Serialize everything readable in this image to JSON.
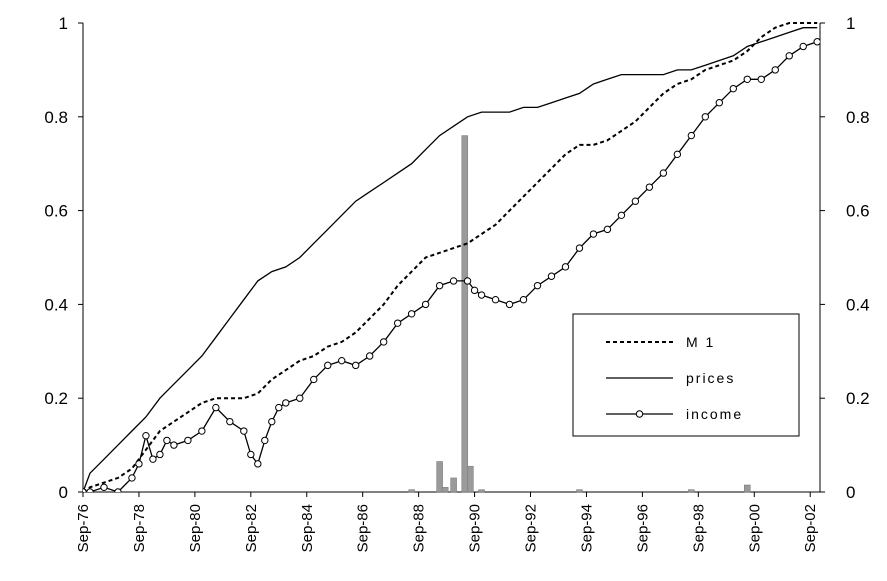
{
  "chart_data": {
    "type": "line",
    "y_ticks_left": [
      "0",
      "0.2",
      "0.4",
      "0.6",
      "0.8",
      "1"
    ],
    "y_ticks_right": [
      "0",
      "0.2",
      "0.4",
      "0.6",
      "0.8",
      "1"
    ],
    "ylim": [
      0,
      1
    ],
    "x_tick_labels": [
      "Sep-76",
      "Sep-78",
      "Sep-80",
      "Sep-82",
      "Sep-84",
      "Sep-86",
      "Sep-88",
      "Sep-90",
      "Sep-92",
      "Sep-94",
      "Sep-96",
      "Sep-98",
      "Sep-00",
      "Sep-02"
    ],
    "x_tick_years": [
      1976.75,
      1978.75,
      1980.75,
      1982.75,
      1984.75,
      1986.75,
      1988.75,
      1990.75,
      1992.75,
      1994.75,
      1996.75,
      1998.75,
      2000.75,
      2002.75
    ],
    "xlim": [
      1976.75,
      2003.1
    ],
    "legend_position": "right-middle",
    "series": [
      {
        "name": "M 1",
        "style": "dashed",
        "color": "#000000",
        "points": [
          [
            1976.75,
            0.0
          ],
          [
            1977.0,
            0.01
          ],
          [
            1977.5,
            0.02
          ],
          [
            1978.0,
            0.03
          ],
          [
            1978.5,
            0.05
          ],
          [
            1979.0,
            0.09
          ],
          [
            1979.5,
            0.13
          ],
          [
            1980.0,
            0.15
          ],
          [
            1980.5,
            0.17
          ],
          [
            1981.0,
            0.19
          ],
          [
            1981.5,
            0.2
          ],
          [
            1982.0,
            0.2
          ],
          [
            1982.5,
            0.2
          ],
          [
            1983.0,
            0.21
          ],
          [
            1983.5,
            0.24
          ],
          [
            1984.0,
            0.26
          ],
          [
            1984.5,
            0.28
          ],
          [
            1985.0,
            0.29
          ],
          [
            1985.5,
            0.31
          ],
          [
            1986.0,
            0.32
          ],
          [
            1986.5,
            0.34
          ],
          [
            1987.0,
            0.37
          ],
          [
            1987.5,
            0.4
          ],
          [
            1988.0,
            0.44
          ],
          [
            1988.5,
            0.47
          ],
          [
            1989.0,
            0.5
          ],
          [
            1989.5,
            0.51
          ],
          [
            1990.0,
            0.52
          ],
          [
            1990.5,
            0.53
          ],
          [
            1991.0,
            0.55
          ],
          [
            1991.5,
            0.57
          ],
          [
            1992.0,
            0.6
          ],
          [
            1992.5,
            0.63
          ],
          [
            1993.0,
            0.66
          ],
          [
            1993.5,
            0.69
          ],
          [
            1994.0,
            0.72
          ],
          [
            1994.5,
            0.74
          ],
          [
            1995.0,
            0.74
          ],
          [
            1995.5,
            0.75
          ],
          [
            1996.0,
            0.77
          ],
          [
            1996.5,
            0.79
          ],
          [
            1997.0,
            0.82
          ],
          [
            1997.5,
            0.85
          ],
          [
            1998.0,
            0.87
          ],
          [
            1998.5,
            0.88
          ],
          [
            1999.0,
            0.9
          ],
          [
            1999.5,
            0.91
          ],
          [
            2000.0,
            0.92
          ],
          [
            2000.5,
            0.94
          ],
          [
            2001.0,
            0.97
          ],
          [
            2001.5,
            0.99
          ],
          [
            2002.0,
            1.0
          ],
          [
            2002.5,
            1.0
          ],
          [
            2003.0,
            1.0
          ]
        ]
      },
      {
        "name": "prices",
        "style": "solid",
        "color": "#000000",
        "points": [
          [
            1976.75,
            0.0
          ],
          [
            1977.0,
            0.04
          ],
          [
            1977.5,
            0.07
          ],
          [
            1978.0,
            0.1
          ],
          [
            1978.5,
            0.13
          ],
          [
            1979.0,
            0.16
          ],
          [
            1979.5,
            0.2
          ],
          [
            1980.0,
            0.23
          ],
          [
            1980.5,
            0.26
          ],
          [
            1981.0,
            0.29
          ],
          [
            1981.5,
            0.33
          ],
          [
            1982.0,
            0.37
          ],
          [
            1982.5,
            0.41
          ],
          [
            1983.0,
            0.45
          ],
          [
            1983.5,
            0.47
          ],
          [
            1984.0,
            0.48
          ],
          [
            1984.5,
            0.5
          ],
          [
            1985.0,
            0.53
          ],
          [
            1985.5,
            0.56
          ],
          [
            1986.0,
            0.59
          ],
          [
            1986.5,
            0.62
          ],
          [
            1987.0,
            0.64
          ],
          [
            1987.5,
            0.66
          ],
          [
            1988.0,
            0.68
          ],
          [
            1988.5,
            0.7
          ],
          [
            1989.0,
            0.73
          ],
          [
            1989.5,
            0.76
          ],
          [
            1990.0,
            0.78
          ],
          [
            1990.5,
            0.8
          ],
          [
            1991.0,
            0.81
          ],
          [
            1991.5,
            0.81
          ],
          [
            1992.0,
            0.81
          ],
          [
            1992.5,
            0.82
          ],
          [
            1993.0,
            0.82
          ],
          [
            1993.5,
            0.83
          ],
          [
            1994.0,
            0.84
          ],
          [
            1994.5,
            0.85
          ],
          [
            1995.0,
            0.87
          ],
          [
            1995.5,
            0.88
          ],
          [
            1996.0,
            0.89
          ],
          [
            1996.5,
            0.89
          ],
          [
            1997.0,
            0.89
          ],
          [
            1997.5,
            0.89
          ],
          [
            1998.0,
            0.9
          ],
          [
            1998.5,
            0.9
          ],
          [
            1999.0,
            0.91
          ],
          [
            1999.5,
            0.92
          ],
          [
            2000.0,
            0.93
          ],
          [
            2000.5,
            0.95
          ],
          [
            2001.0,
            0.96
          ],
          [
            2001.5,
            0.97
          ],
          [
            2002.0,
            0.98
          ],
          [
            2002.5,
            0.99
          ],
          [
            2003.0,
            0.99
          ]
        ]
      },
      {
        "name": "income",
        "style": "marker-line",
        "color": "#000000",
        "points": [
          [
            1976.75,
            0.0
          ],
          [
            1977.0,
            0.0
          ],
          [
            1977.5,
            0.01
          ],
          [
            1978.0,
            0.0
          ],
          [
            1978.5,
            0.03
          ],
          [
            1978.75,
            0.06
          ],
          [
            1979.0,
            0.12
          ],
          [
            1979.25,
            0.07
          ],
          [
            1979.5,
            0.08
          ],
          [
            1979.75,
            0.11
          ],
          [
            1980.0,
            0.1
          ],
          [
            1980.5,
            0.11
          ],
          [
            1981.0,
            0.13
          ],
          [
            1981.5,
            0.18
          ],
          [
            1982.0,
            0.15
          ],
          [
            1982.5,
            0.13
          ],
          [
            1982.75,
            0.08
          ],
          [
            1983.0,
            0.06
          ],
          [
            1983.25,
            0.11
          ],
          [
            1983.5,
            0.15
          ],
          [
            1983.75,
            0.18
          ],
          [
            1984.0,
            0.19
          ],
          [
            1984.5,
            0.2
          ],
          [
            1985.0,
            0.24
          ],
          [
            1985.5,
            0.27
          ],
          [
            1986.0,
            0.28
          ],
          [
            1986.5,
            0.27
          ],
          [
            1987.0,
            0.29
          ],
          [
            1987.5,
            0.32
          ],
          [
            1988.0,
            0.36
          ],
          [
            1988.5,
            0.38
          ],
          [
            1989.0,
            0.4
          ],
          [
            1989.5,
            0.44
          ],
          [
            1990.0,
            0.45
          ],
          [
            1990.5,
            0.45
          ],
          [
            1990.75,
            0.43
          ],
          [
            1991.0,
            0.42
          ],
          [
            1991.5,
            0.41
          ],
          [
            1992.0,
            0.4
          ],
          [
            1992.5,
            0.41
          ],
          [
            1993.0,
            0.44
          ],
          [
            1993.5,
            0.46
          ],
          [
            1994.0,
            0.48
          ],
          [
            1994.5,
            0.52
          ],
          [
            1995.0,
            0.55
          ],
          [
            1995.5,
            0.56
          ],
          [
            1996.0,
            0.59
          ],
          [
            1996.5,
            0.62
          ],
          [
            1997.0,
            0.65
          ],
          [
            1997.5,
            0.68
          ],
          [
            1998.0,
            0.72
          ],
          [
            1998.5,
            0.76
          ],
          [
            1999.0,
            0.8
          ],
          [
            1999.5,
            0.83
          ],
          [
            2000.0,
            0.86
          ],
          [
            2000.5,
            0.88
          ],
          [
            2001.0,
            0.88
          ],
          [
            2001.5,
            0.9
          ],
          [
            2002.0,
            0.93
          ],
          [
            2002.5,
            0.95
          ],
          [
            2003.0,
            0.96
          ]
        ]
      }
    ],
    "bars": {
      "name": "",
      "color": "#9a9a9a",
      "points": [
        [
          1988.5,
          0.005
        ],
        [
          1989.5,
          0.065
        ],
        [
          1989.7,
          0.01
        ],
        [
          1990.0,
          0.03
        ],
        [
          1990.4,
          0.76
        ],
        [
          1990.6,
          0.055
        ],
        [
          1991.0,
          0.005
        ],
        [
          1994.5,
          0.005
        ],
        [
          1998.5,
          0.005
        ],
        [
          2000.5,
          0.015
        ]
      ]
    }
  }
}
